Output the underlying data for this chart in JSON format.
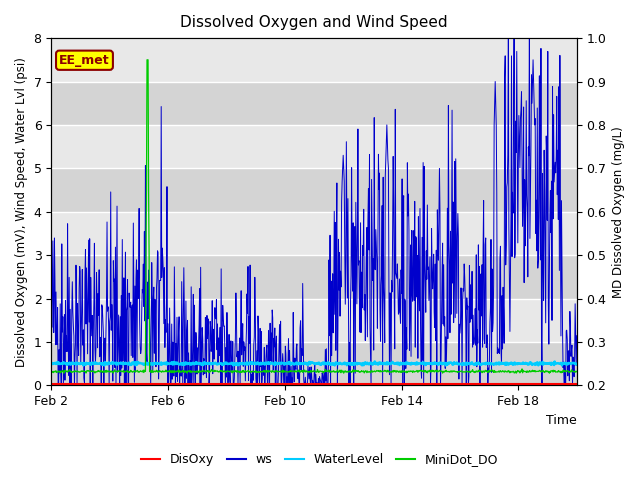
{
  "title": "Dissolved Oxygen and Wind Speed",
  "xlabel": "Time",
  "ylabel_left": "Dissolved Oxygen (mV), Wind Speed, Water Lvl (psi)",
  "ylabel_right": "MD Dissolved Oxygen (mg/L)",
  "ylim_left": [
    0.0,
    8.0
  ],
  "ylim_right": [
    0.2,
    1.0
  ],
  "yticks_left": [
    0.0,
    1.0,
    2.0,
    3.0,
    4.0,
    5.0,
    6.0,
    7.0,
    8.0
  ],
  "yticks_right": [
    0.2,
    0.3,
    0.4,
    0.5,
    0.6,
    0.7,
    0.8,
    0.9,
    1.0
  ],
  "xtick_labels": [
    "Feb 2",
    "Feb 6",
    "Feb 10",
    "Feb 14",
    "Feb 18"
  ],
  "xtick_pos": [
    0,
    4,
    8,
    12,
    16
  ],
  "xlim": [
    0,
    18
  ],
  "annotation_text": "EE_met",
  "annotation_color": "#8B0000",
  "annotation_bg": "#FFFF00",
  "annotation_border": "#8B0000",
  "colors": {
    "DisOxy": "#FF0000",
    "ws": "#0000CC",
    "WaterLevel": "#00CCFF",
    "MiniDot_DO": "#00CC00"
  },
  "legend_labels": [
    "DisOxy",
    "ws",
    "WaterLevel",
    "MiniDot_DO"
  ],
  "bg_color_dark": "#d4d4d4",
  "bg_color_light": "#e8e8e8",
  "n_points": 1000,
  "seed": 42
}
